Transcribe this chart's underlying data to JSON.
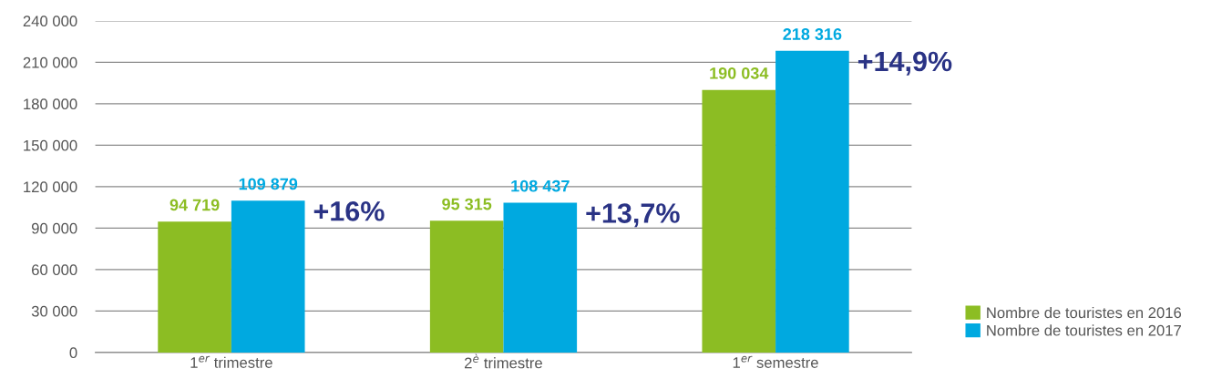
{
  "chart_data": {
    "type": "bar",
    "categories": [
      "1$^{er}$ trimestre",
      "2$^{è}$ trimestre",
      "1$^{er}$ semestre"
    ],
    "series": [
      {
        "name": "Nombre de touristes en 2016",
        "color": "#8cbd23",
        "values": [
          94719,
          95315,
          190034
        ],
        "value_labels": [
          "94 719",
          "95 315",
          "190 034"
        ]
      },
      {
        "name": "Nombre de touristes en 2017",
        "color": "#00a9e0",
        "values": [
          109879,
          108437,
          218316
        ],
        "value_labels": [
          "109 879",
          "108 437",
          "218 316"
        ]
      }
    ],
    "ylim": [
      0,
      240000
    ],
    "yticks": [
      {
        "value": 0,
        "label": "0"
      },
      {
        "value": 30000,
        "label": "30 000"
      },
      {
        "value": 60000,
        "label": "60 000"
      },
      {
        "value": 90000,
        "label": "90 000"
      },
      {
        "value": 120000,
        "label": "120 000"
      },
      {
        "value": 150000,
        "label": "150 000"
      },
      {
        "value": 180000,
        "label": "180 000"
      },
      {
        "value": 210000,
        "label": "210 000"
      },
      {
        "value": 240000,
        "label": "240 000"
      }
    ],
    "grid": "y",
    "legend": "bottom right",
    "annotations": [
      {
        "text": "+16%",
        "x": "1$^{er}$ trimestre",
        "y": 109879
      },
      {
        "text": "+13,7%",
        "x": "2$^{è}$ trimestre",
        "y": 108437
      },
      {
        "text": "+14,9%",
        "x": "1$^{er}$ semestre",
        "y": 218316
      }
    ]
  }
}
